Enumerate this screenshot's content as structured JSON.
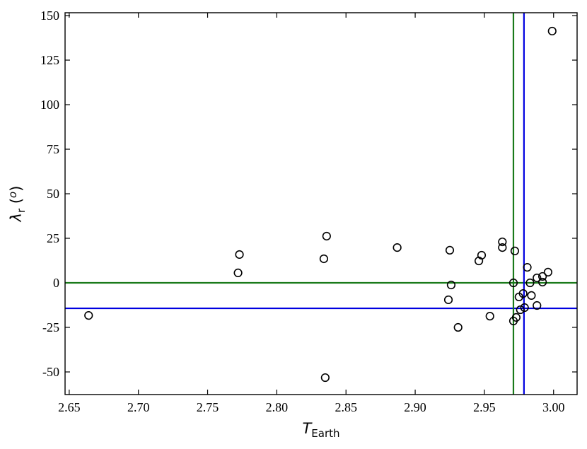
{
  "chart_data": {
    "type": "scatter",
    "xlabel": [
      "T",
      "Earth"
    ],
    "ylabel": [
      "λ",
      "r",
      " (",
      "o",
      ")"
    ],
    "xlim": [
      2.647,
      3.017
    ],
    "ylim": [
      -62.7,
      151.6
    ],
    "xticks": [
      {
        "value": 2.65,
        "label": "2.65"
      },
      {
        "value": 2.7,
        "label": "2.70"
      },
      {
        "value": 2.75,
        "label": "2.75"
      },
      {
        "value": 2.8,
        "label": "2.80"
      },
      {
        "value": 2.85,
        "label": "2.85"
      },
      {
        "value": 2.9,
        "label": "2.90"
      },
      {
        "value": 2.95,
        "label": "2.95"
      },
      {
        "value": 3.0,
        "label": "3.00"
      }
    ],
    "yticks": [
      -50,
      -25,
      0,
      25,
      50,
      75,
      100,
      125,
      150
    ],
    "series": [
      {
        "color": "#000000",
        "x": [
          2.664,
          2.772,
          2.773,
          2.834,
          2.836,
          2.835,
          2.887,
          2.925,
          2.926,
          2.924,
          2.931,
          2.946,
          2.948,
          2.954,
          2.963,
          2.963,
          2.971,
          2.972,
          2.971,
          2.973,
          2.975,
          2.976,
          2.978,
          2.979,
          2.981,
          2.983,
          2.984,
          2.988,
          2.988,
          2.992,
          2.992,
          2.996,
          2.999
        ],
        "values": [
          -18.3,
          5.6,
          15.9,
          13.5,
          26.2,
          -53.2,
          19.8,
          18.3,
          -1.2,
          -9.5,
          -25,
          12.3,
          15.5,
          -18.7,
          23,
          19.8,
          0,
          17.9,
          -21.4,
          -19.4,
          -7.9,
          -15.1,
          -6,
          -13.9,
          8.7,
          0,
          -7.1,
          -12.7,
          2.8,
          3.6,
          0.4,
          6,
          141.3
        ]
      }
    ],
    "vlines": [
      {
        "x": 2.971,
        "color": "#1a7a1a"
      },
      {
        "x": 2.9786,
        "color": "#0000e0"
      }
    ],
    "hlines": [
      {
        "y": 0,
        "color": "#1a7a1a"
      },
      {
        "y": -14.3,
        "color": "#0000e0"
      }
    ]
  }
}
